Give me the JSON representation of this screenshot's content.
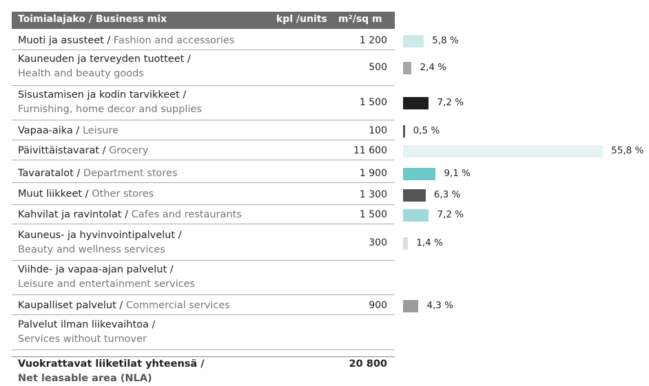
{
  "table": {
    "header": [
      "Toimialajako / Business mix",
      "kpl /units",
      "m²/sq m"
    ],
    "rows": [
      {
        "fi": "Muoti ja asusteet /",
        "en": "Fashion and accessories",
        "area": "1 200",
        "share": 5.8,
        "share_label": "5,8 %",
        "color": "#cde9ea"
      },
      {
        "fi": "Kauneuden ja terveyden tuotteet /",
        "en": "Health and beauty goods",
        "area": "500",
        "share": 2.4,
        "share_label": "2,4 %",
        "color": "#a6a6a6"
      },
      {
        "fi": "Sisustamisen ja kodin tarvikkeet /",
        "en": "Furnishing, home decor and supplies",
        "area": "1 500",
        "share": 7.2,
        "share_label": "7,2 %",
        "color": "#1e1e1e"
      },
      {
        "fi": "Vapaa-aika /",
        "en": "Leisure",
        "area": "100",
        "share": 0.5,
        "share_label": "0,5 %",
        "color": "#555555"
      },
      {
        "fi": "Päivittäistavarat /",
        "en": "Grocery",
        "area": "11 600",
        "share": 55.8,
        "share_label": "55,8 %",
        "color": "#e4f4f4"
      },
      {
        "fi": "Tavaratalot /",
        "en": "Department stores",
        "area": "1 900",
        "share": 9.1,
        "share_label": "9,1 %",
        "color": "#6dc8c8"
      },
      {
        "fi": "Muut liikkeet /",
        "en": "Other stores",
        "area": "1 300",
        "share": 6.3,
        "share_label": "6,3 %",
        "color": "#555555"
      },
      {
        "fi": "Kahvilat ja ravintolat /",
        "en": "Cafes and restaurants",
        "area": "1 500",
        "share": 7.2,
        "share_label": "7,2 %",
        "color": "#9fd9d9"
      },
      {
        "fi": "Kauneus- ja hyvinvointipalvelut /",
        "en": "Beauty and wellness services",
        "area": "300",
        "share": 1.4,
        "share_label": "1,4 %",
        "color": "#dddddd"
      },
      {
        "fi": "Viihde- ja vapaa-ajan palvelut /",
        "en": "Leisure and entertainment services"
      },
      {
        "fi": "Kaupalliset palvelut /",
        "en": "Commercial services",
        "area": "900",
        "share": 4.3,
        "share_label": "4,3 %",
        "color": "#9b9b9b"
      },
      {
        "fi": "Palvelut ilman liikevaihtoa /",
        "en": "Services without turnover"
      }
    ],
    "total": {
      "fi": "Vuokrattavat liiketilat yhteensä /",
      "en": "Net leasable area (NLA)",
      "area": "20 800"
    }
  }
}
